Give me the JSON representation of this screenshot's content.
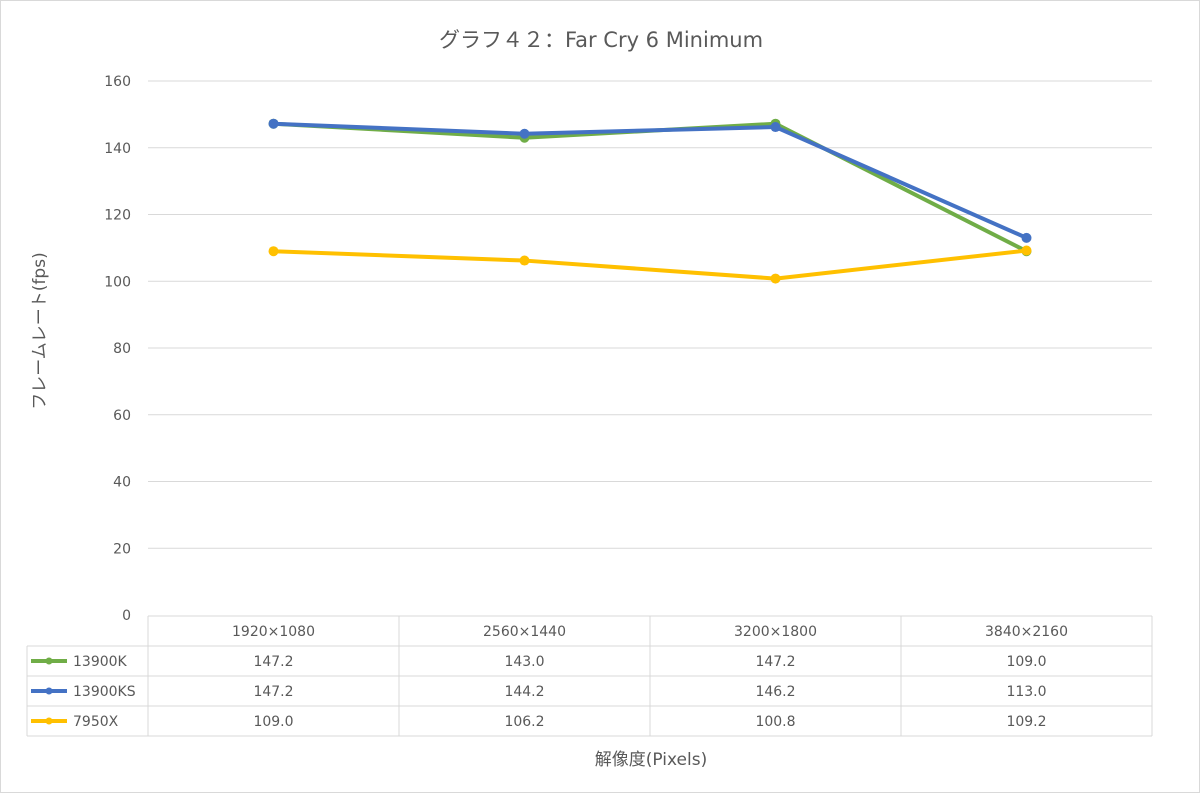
{
  "chart_data": {
    "type": "line",
    "title": "グラフ４２：Far Cry 6 Minimum",
    "xlabel": "解像度(Pixels)",
    "ylabel": "フレームレート(fps)",
    "ylim": [
      0,
      160
    ],
    "yticks": [
      0,
      20,
      40,
      60,
      80,
      100,
      120,
      140,
      160
    ],
    "grid": true,
    "legend": "data-table",
    "categories": [
      "1920×1080",
      "2560×1440",
      "3200×1800",
      "3840×2160"
    ],
    "series": [
      {
        "name": "13900K",
        "color": "#70ad47",
        "values": [
          147.2,
          143.0,
          147.2,
          109.0
        ],
        "labels": [
          "147.2",
          "143.0",
          "147.2",
          "109.0"
        ]
      },
      {
        "name": "13900KS",
        "color": "#4472c4",
        "values": [
          147.2,
          144.2,
          146.2,
          113.0
        ],
        "labels": [
          "147.2",
          "144.2",
          "146.2",
          "113.0"
        ]
      },
      {
        "name": "7950X",
        "color": "#ffc000",
        "values": [
          109.0,
          106.2,
          100.8,
          109.2
        ],
        "labels": [
          "109.0",
          "106.2",
          "100.8",
          "109.2"
        ]
      }
    ]
  }
}
